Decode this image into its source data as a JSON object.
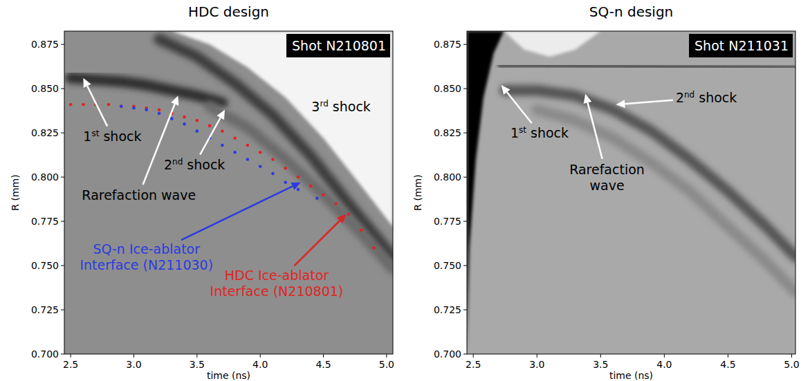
{
  "chart_data": [
    {
      "type": "scatter",
      "title": "HDC design",
      "subtitle": "Shot N210801",
      "color": "#8e8e8e",
      "xlabel": "time (ns)",
      "ylabel": "R (mm)",
      "xlim": [
        2.45,
        5.05
      ],
      "ylim": [
        0.7,
        0.8825
      ],
      "xticks": [
        {
          "value": 2.5,
          "label": "2.5"
        },
        {
          "value": 3.0,
          "label": "3.0"
        },
        {
          "value": 3.5,
          "label": "3.5"
        },
        {
          "value": 4.0,
          "label": "4.0"
        },
        {
          "value": 4.5,
          "label": "4.5"
        },
        {
          "value": 5.0,
          "label": "5.0"
        }
      ],
      "yticks": [
        {
          "value": 0.7,
          "label": "0.700"
        },
        {
          "value": 0.725,
          "label": "0.725"
        },
        {
          "value": 0.75,
          "label": "0.750"
        },
        {
          "value": 0.775,
          "label": "0.775"
        },
        {
          "value": 0.8,
          "label": "0.800"
        },
        {
          "value": 0.825,
          "label": "0.825"
        },
        {
          "value": 0.85,
          "label": "0.850"
        },
        {
          "value": 0.875,
          "label": "0.875"
        }
      ],
      "grid": false,
      "series": [
        {
          "type": "area",
          "color": "#f4f4f4",
          "x": [
            3.3,
            3.6,
            3.9,
            4.2,
            4.5,
            4.8,
            5.05
          ],
          "values": [
            0.8825,
            0.875,
            0.862,
            0.845,
            0.822,
            0.795,
            0.772
          ]
        },
        {
          "type": "line",
          "line_style": "band",
          "color": "#3c3c3c",
          "x": [
            3.2,
            3.5,
            3.8,
            4.1,
            4.4,
            4.7,
            5.05
          ],
          "values": [
            0.878,
            0.868,
            0.853,
            0.835,
            0.812,
            0.785,
            0.755
          ]
        },
        {
          "type": "line",
          "line_style": "band",
          "color": "#2e2e2e",
          "x": [
            2.5,
            2.7,
            2.9,
            3.1,
            3.3,
            3.5,
            3.7
          ],
          "values": [
            0.856,
            0.855,
            0.854,
            0.852,
            0.849,
            0.846,
            0.842
          ]
        },
        {
          "type": "line",
          "line_style": "band",
          "color": "#6a6a6a",
          "x": [
            3.6,
            3.9,
            4.2,
            4.5,
            4.8,
            5.05
          ],
          "values": [
            0.84,
            0.828,
            0.81,
            0.79,
            0.768,
            0.748
          ]
        },
        {
          "type": "scatter",
          "marker": "dot",
          "color": "#e02424",
          "x": [
            2.5,
            2.6,
            2.7,
            2.8,
            2.9,
            3.0,
            3.1,
            3.2,
            3.3,
            3.4,
            3.5,
            3.6,
            3.7,
            3.8,
            3.9,
            4.0,
            4.1,
            4.2,
            4.3,
            4.4,
            4.5,
            4.6,
            4.7,
            4.8,
            4.9
          ],
          "values": [
            0.841,
            0.841,
            0.841,
            0.841,
            0.84,
            0.84,
            0.839,
            0.838,
            0.836,
            0.834,
            0.832,
            0.829,
            0.826,
            0.822,
            0.818,
            0.814,
            0.81,
            0.805,
            0.8,
            0.795,
            0.79,
            0.785,
            0.779,
            0.77,
            0.76
          ]
        },
        {
          "type": "scatter",
          "marker": "dot",
          "color": "#2b3be0",
          "x": [
            2.9,
            3.0,
            3.1,
            3.2,
            3.3,
            3.4,
            3.5,
            3.6,
            3.7,
            3.8,
            3.9,
            4.0,
            4.1,
            4.2,
            4.3,
            4.45
          ],
          "values": [
            0.84,
            0.839,
            0.838,
            0.836,
            0.833,
            0.83,
            0.826,
            0.822,
            0.818,
            0.814,
            0.81,
            0.806,
            0.802,
            0.797,
            0.793,
            0.788
          ]
        }
      ],
      "annotations": [
        {
          "text": "1st shock",
          "color": "#000000",
          "x": 2.83,
          "y": 0.823,
          "arrow": [
            2.6,
            0.856
          ]
        },
        {
          "text": "Rarefaction wave",
          "color": "#000000",
          "x": 3.04,
          "y": 0.79,
          "arrow": [
            3.35,
            0.846
          ]
        },
        {
          "text": "2nd shock",
          "color": "#000000",
          "x": 3.48,
          "y": 0.807,
          "arrow": [
            3.72,
            0.838
          ]
        },
        {
          "text": "3rd shock",
          "color": "#000000",
          "x": 4.64,
          "y": 0.84
        },
        {
          "lines": [
            "SQ-n Ice-ablator",
            "Interface (N211030)"
          ],
          "color": "#2b3be0",
          "x": 3.1,
          "y": 0.755,
          "arrow": [
            4.32,
            0.797
          ]
        },
        {
          "lines": [
            "HDC Ice-ablator",
            "Interface (N210801)"
          ],
          "color": "#e02424",
          "x": 4.13,
          "y": 0.74,
          "arrow": [
            4.68,
            0.779
          ]
        }
      ]
    },
    {
      "type": "scatter",
      "title": "SQ-n design",
      "subtitle": "Shot N211031",
      "color": "#a9a9a9",
      "xlabel": "time (ns)",
      "ylabel": "R (mm)",
      "xlim": [
        2.45,
        5.03
      ],
      "ylim": [
        0.7,
        0.8825
      ],
      "xticks": [
        {
          "value": 2.5,
          "label": "2.5"
        },
        {
          "value": 3.0,
          "label": "3.0"
        },
        {
          "value": 3.5,
          "label": "3.5"
        },
        {
          "value": 4.0,
          "label": "4.0"
        },
        {
          "value": 4.5,
          "label": "4.5"
        },
        {
          "value": 5.0,
          "label": "5.0"
        }
      ],
      "yticks": [
        {
          "value": 0.7,
          "label": "0.700"
        },
        {
          "value": 0.725,
          "label": "0.725"
        },
        {
          "value": 0.75,
          "label": "0.750"
        },
        {
          "value": 0.775,
          "label": "0.775"
        },
        {
          "value": 0.8,
          "label": "0.800"
        },
        {
          "value": 0.825,
          "label": "0.825"
        },
        {
          "value": 0.85,
          "label": "0.850"
        },
        {
          "value": 0.875,
          "label": "0.875"
        }
      ],
      "grid": false,
      "series": [
        {
          "type": "area",
          "color": "#ececec",
          "x": [
            2.74,
            2.9,
            3.1,
            3.3,
            3.5
          ],
          "values": [
            0.8825,
            0.872,
            0.868,
            0.872,
            0.8825
          ]
        },
        {
          "type": "area",
          "color": "#050505",
          "x": [
            2.45,
            2.47,
            2.52,
            2.58,
            2.66,
            2.74
          ],
          "values": [
            0.7,
            0.76,
            0.81,
            0.845,
            0.87,
            0.8825
          ]
        },
        {
          "type": "line",
          "line_style": "solid",
          "color": "#2a2a2a",
          "x": [
            2.7,
            5.03
          ],
          "values": [
            0.863,
            0.862
          ]
        },
        {
          "type": "line",
          "line_style": "band",
          "color": "#555555",
          "x": [
            2.75,
            3.0,
            3.3,
            3.6,
            3.9,
            4.2,
            4.5,
            4.8,
            5.03
          ],
          "values": [
            0.849,
            0.849,
            0.846,
            0.838,
            0.826,
            0.81,
            0.792,
            0.772,
            0.755
          ]
        },
        {
          "type": "line",
          "line_style": "band",
          "color": "#8a8a8a",
          "x": [
            3.0,
            3.3,
            3.6,
            3.9,
            4.2,
            4.5,
            4.8,
            5.03
          ],
          "values": [
            0.838,
            0.832,
            0.822,
            0.808,
            0.792,
            0.772,
            0.752,
            0.735
          ]
        }
      ],
      "annotations": [
        {
          "text": "1st shock",
          "color": "#000000",
          "x": 3.02,
          "y": 0.825,
          "arrow": [
            2.72,
            0.852
          ]
        },
        {
          "lines": [
            "Rarefaction",
            "wave"
          ],
          "color": "#000000",
          "x": 3.55,
          "y": 0.8,
          "arrow": [
            3.38,
            0.847
          ]
        },
        {
          "text": "2nd shock",
          "color": "#000000",
          "x": 4.33,
          "y": 0.845,
          "arrow": [
            3.62,
            0.841
          ]
        }
      ]
    }
  ]
}
